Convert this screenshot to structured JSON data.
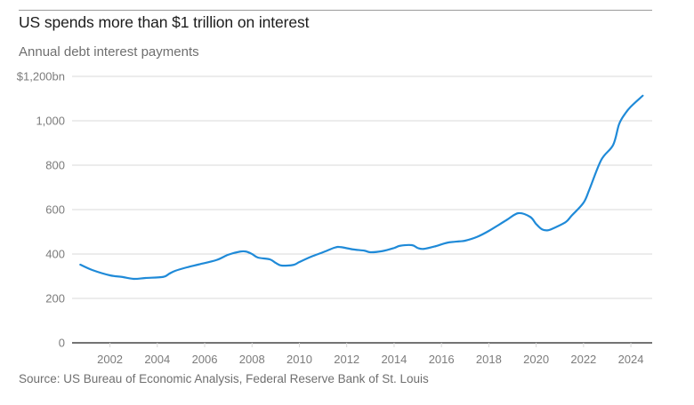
{
  "title": "US spends more than $1 trillion on interest",
  "subtitle": "Annual debt interest payments",
  "source": "Source: US Bureau of Economic Analysis, Federal Reserve Bank of St. Louis",
  "colors": {
    "line": "#1f8ad8",
    "grid": "#d9d9d9",
    "axis": "#222222",
    "text": "#7c7c7c"
  },
  "chart_data": {
    "type": "line",
    "title": "US spends more than $1 trillion on interest",
    "subtitle": "Annual debt interest payments",
    "xlabel": "",
    "ylabel": "",
    "unit": "$bn",
    "xlim": [
      2000.4,
      2024.9
    ],
    "ylim": [
      0,
      1200
    ],
    "grid": true,
    "legend": "none",
    "x_ticks": [
      2002,
      2004,
      2006,
      2008,
      2010,
      2012,
      2014,
      2016,
      2018,
      2020,
      2022,
      2024
    ],
    "x_tick_labels": [
      "2002",
      "2004",
      "2006",
      "2008",
      "2010",
      "2012",
      "2014",
      "2016",
      "2018",
      "2020",
      "2022",
      "2024"
    ],
    "y_ticks": [
      0,
      200,
      400,
      600,
      800,
      1000,
      1200
    ],
    "y_tick_labels": [
      "0",
      "200",
      "400",
      "600",
      "800",
      "1,000",
      "$1,200bn"
    ],
    "series": [
      {
        "name": "Annual debt interest payments",
        "x": [
          2000.75,
          2001.25,
          2002.0,
          2002.5,
          2003.0,
          2003.5,
          2004.25,
          2004.5,
          2004.75,
          2005.25,
          2005.75,
          2006.5,
          2007.0,
          2007.5,
          2007.75,
          2008.0,
          2008.25,
          2008.75,
          2009.0,
          2009.25,
          2009.75,
          2010.0,
          2010.5,
          2011.0,
          2011.5,
          2011.75,
          2012.25,
          2012.75,
          2013.0,
          2013.5,
          2014.0,
          2014.25,
          2014.75,
          2015.0,
          2015.25,
          2015.75,
          2016.25,
          2016.75,
          2017.0,
          2017.5,
          2018.0,
          2018.75,
          2019.25,
          2019.75,
          2020.0,
          2020.25,
          2020.5,
          2020.75,
          2021.25,
          2021.5,
          2022.0,
          2022.25,
          2022.75,
          2023.25,
          2023.5,
          2023.75,
          2024.0,
          2024.5
        ],
        "values": [
          352,
          328,
          304,
          297,
          288,
          292,
          297,
          311,
          324,
          340,
          353,
          373,
          397,
          411,
          411,
          400,
          384,
          376,
          360,
          348,
          351,
          364,
          388,
          408,
          429,
          431,
          421,
          415,
          408,
          413,
          427,
          437,
          440,
          427,
          423,
          435,
          451,
          457,
          460,
          477,
          504,
          553,
          584,
          567,
          535,
          511,
          507,
          517,
          544,
          573,
          631,
          691,
          824,
          891,
          984,
          1031,
          1064,
          1113
        ]
      }
    ]
  }
}
